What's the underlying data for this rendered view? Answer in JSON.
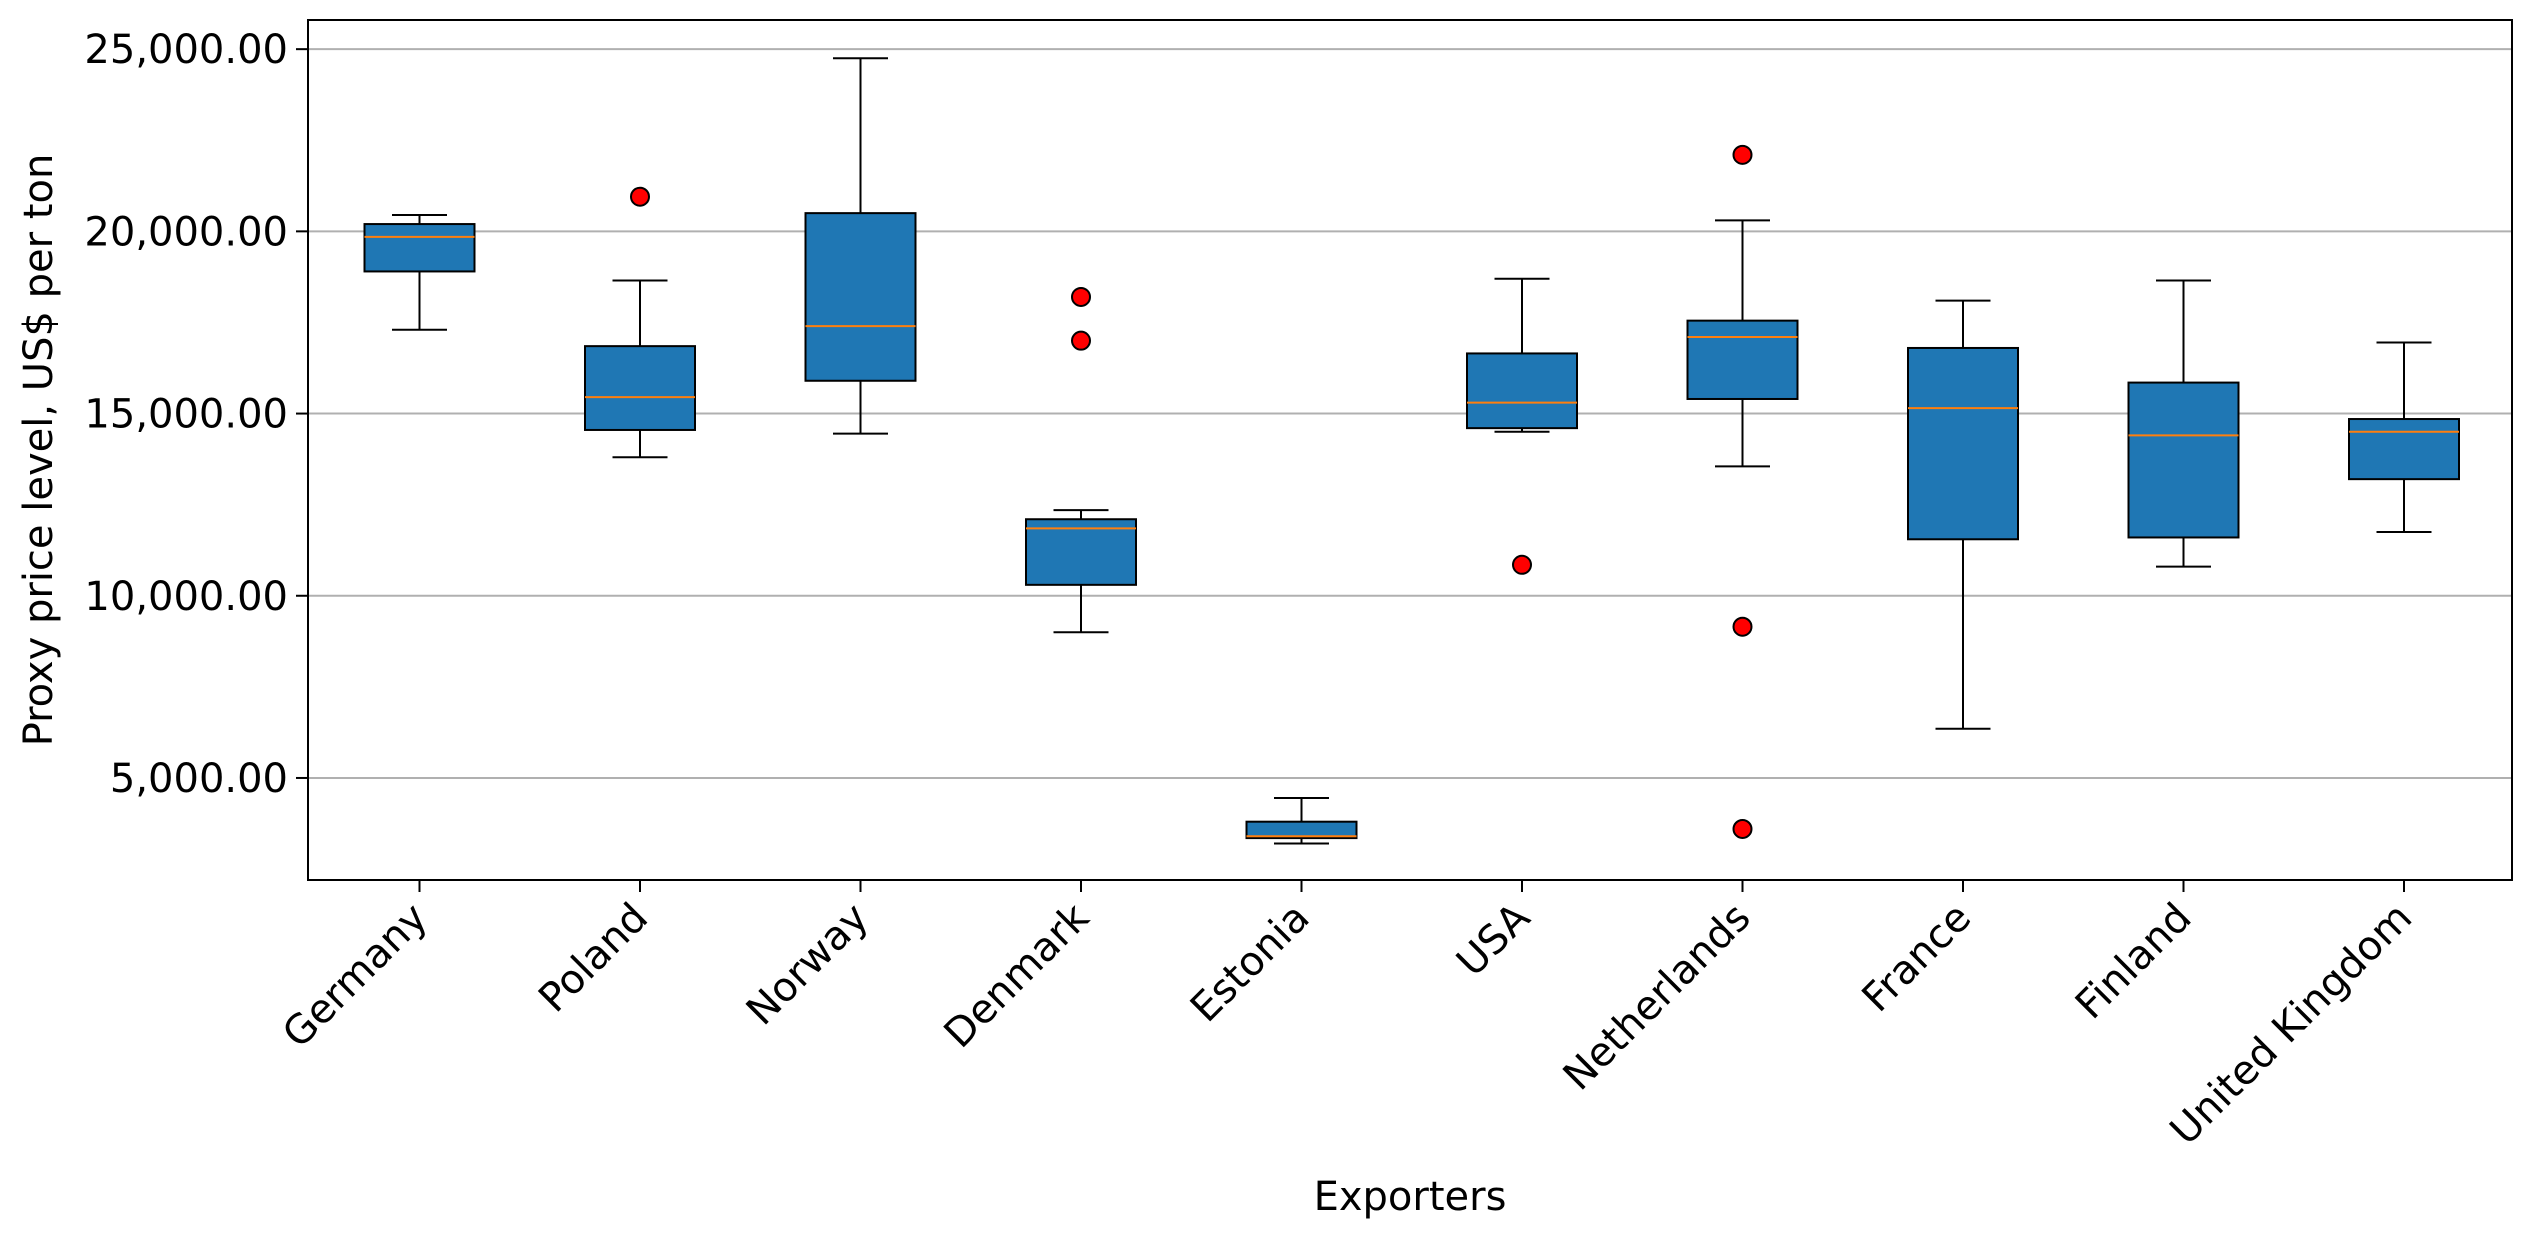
{
  "chart_data": {
    "type": "boxplot",
    "title": "",
    "xlabel": "Exporters",
    "ylabel": "Proxy price level, US$ per ton",
    "ylim": [
      2200,
      25800
    ],
    "yticks": [
      5000,
      10000,
      15000,
      20000,
      25000
    ],
    "ytick_labels": [
      "5,000.00",
      "10,000.00",
      "15,000.00",
      "20,000.00",
      "25,000.00"
    ],
    "grid": "horizontal",
    "colors": {
      "box_fill": "#1f77b4",
      "median": "#ff7f0e",
      "outlier_fill": "#ff0000",
      "grid": "#b0b0b0"
    },
    "categories": [
      "Germany",
      "Poland",
      "Norway",
      "Denmark",
      "Estonia",
      "USA",
      "Netherlands",
      "France",
      "Finland",
      "United Kingdom"
    ],
    "boxes": [
      {
        "name": "Germany",
        "whislo": 17300,
        "q1": 18900,
        "med": 19850,
        "q3": 20200,
        "whishi": 20450,
        "fliers": []
      },
      {
        "name": "Poland",
        "whislo": 13800,
        "q1": 14550,
        "med": 15450,
        "q3": 16850,
        "whishi": 18650,
        "fliers": [
          20950
        ]
      },
      {
        "name": "Norway",
        "whislo": 14450,
        "q1": 15900,
        "med": 17400,
        "q3": 20500,
        "whishi": 24750,
        "fliers": []
      },
      {
        "name": "Denmark",
        "whislo": 9000,
        "q1": 10300,
        "med": 11850,
        "q3": 12100,
        "whishi": 12350,
        "fliers": [
          18200,
          17000
        ]
      },
      {
        "name": "Estonia",
        "whislo": 3200,
        "q1": 3350,
        "med": 3400,
        "q3": 3800,
        "whishi": 4450,
        "fliers": []
      },
      {
        "name": "USA",
        "whislo": 14500,
        "q1": 14600,
        "med": 15300,
        "q3": 16650,
        "whishi": 18700,
        "fliers": [
          10850
        ]
      },
      {
        "name": "Netherlands",
        "whislo": 13550,
        "q1": 15400,
        "med": 17100,
        "q3": 17550,
        "whishi": 20300,
        "fliers": [
          22100,
          9150,
          3600
        ]
      },
      {
        "name": "France",
        "whislo": 6350,
        "q1": 11550,
        "med": 15150,
        "q3": 16800,
        "whishi": 18100,
        "fliers": []
      },
      {
        "name": "Finland",
        "whislo": 10800,
        "q1": 11600,
        "med": 14400,
        "q3": 15850,
        "whishi": 18650,
        "fliers": []
      },
      {
        "name": "United Kingdom",
        "whislo": 11750,
        "q1": 13200,
        "med": 14500,
        "q3": 14850,
        "whishi": 16950,
        "fliers": []
      }
    ]
  }
}
